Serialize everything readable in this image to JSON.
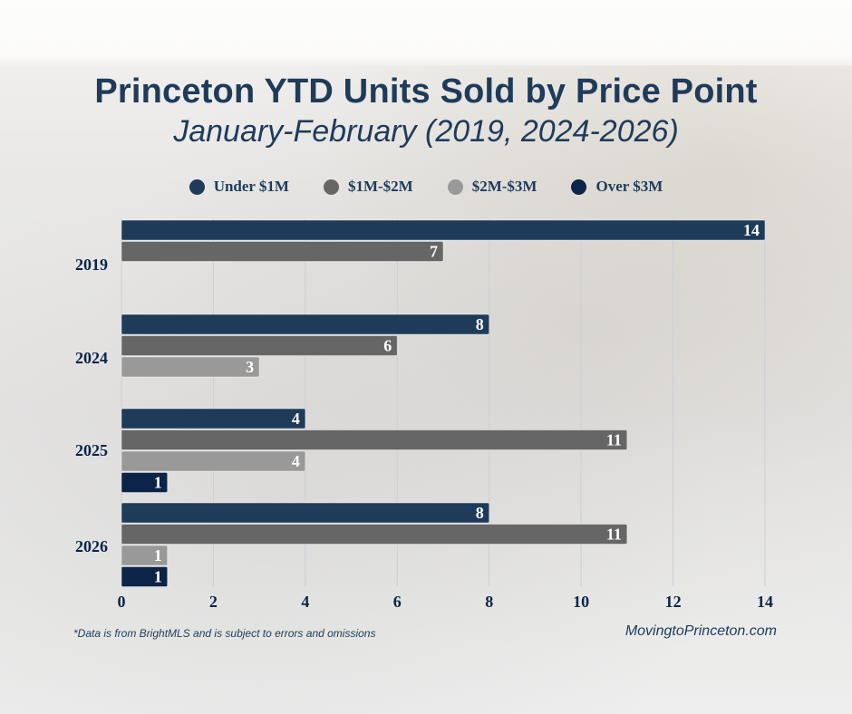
{
  "chart_data": {
    "type": "bar",
    "orientation": "horizontal",
    "title": "Princeton YTD Units Sold by Price Point",
    "subtitle": "January-February (2019, 2024-2026)",
    "categories": [
      "2019",
      "2024",
      "2025",
      "2026"
    ],
    "series": [
      {
        "name": "Under $1M",
        "color": "#1f3b5a",
        "values": [
          14,
          8,
          4,
          8
        ]
      },
      {
        "name": "$1M-$2M",
        "color": "#666666",
        "values": [
          7,
          6,
          11,
          11
        ]
      },
      {
        "name": "$2M-$3M",
        "color": "#999999",
        "values": [
          null,
          3,
          4,
          1
        ]
      },
      {
        "name": "Over $3M",
        "color": "#0b2447",
        "values": [
          null,
          null,
          1,
          1
        ]
      }
    ],
    "xlim": [
      0,
      14
    ],
    "xticks": [
      "0",
      "2",
      "4",
      "6",
      "8",
      "10",
      "12",
      "14"
    ],
    "xlabel": "",
    "ylabel": "",
    "grid": true,
    "legend": "top-center",
    "data_labels": true
  },
  "footer": {
    "note": "*Data is from BrightMLS and is subject to errors and omissions",
    "site": "MovingtoPrinceton.com"
  }
}
